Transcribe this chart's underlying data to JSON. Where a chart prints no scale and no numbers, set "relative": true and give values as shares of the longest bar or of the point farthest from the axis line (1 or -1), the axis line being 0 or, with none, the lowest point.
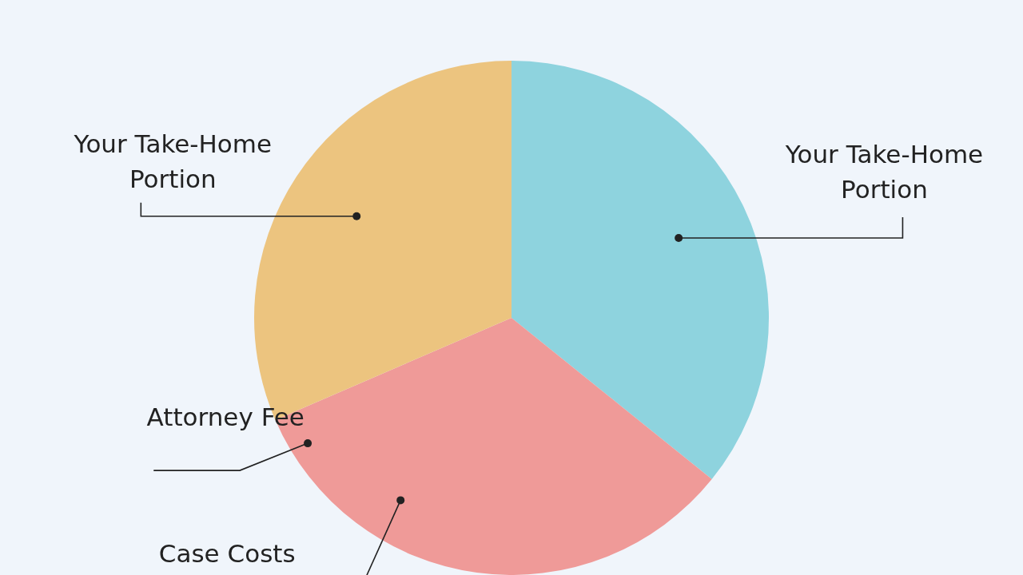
{
  "chart_data": {
    "type": "pie",
    "relative": true,
    "categories": [
      "Your Take-Home Portion",
      "Attorney Fee",
      "Your Take-Home Portion"
    ],
    "values": [
      35.8,
      32.7,
      31.5
    ],
    "colors": [
      "#8ed3de",
      "#ef9a98",
      "#ecc47f"
    ],
    "annotations": [
      "Case Costs"
    ],
    "legend": false
  }
}
